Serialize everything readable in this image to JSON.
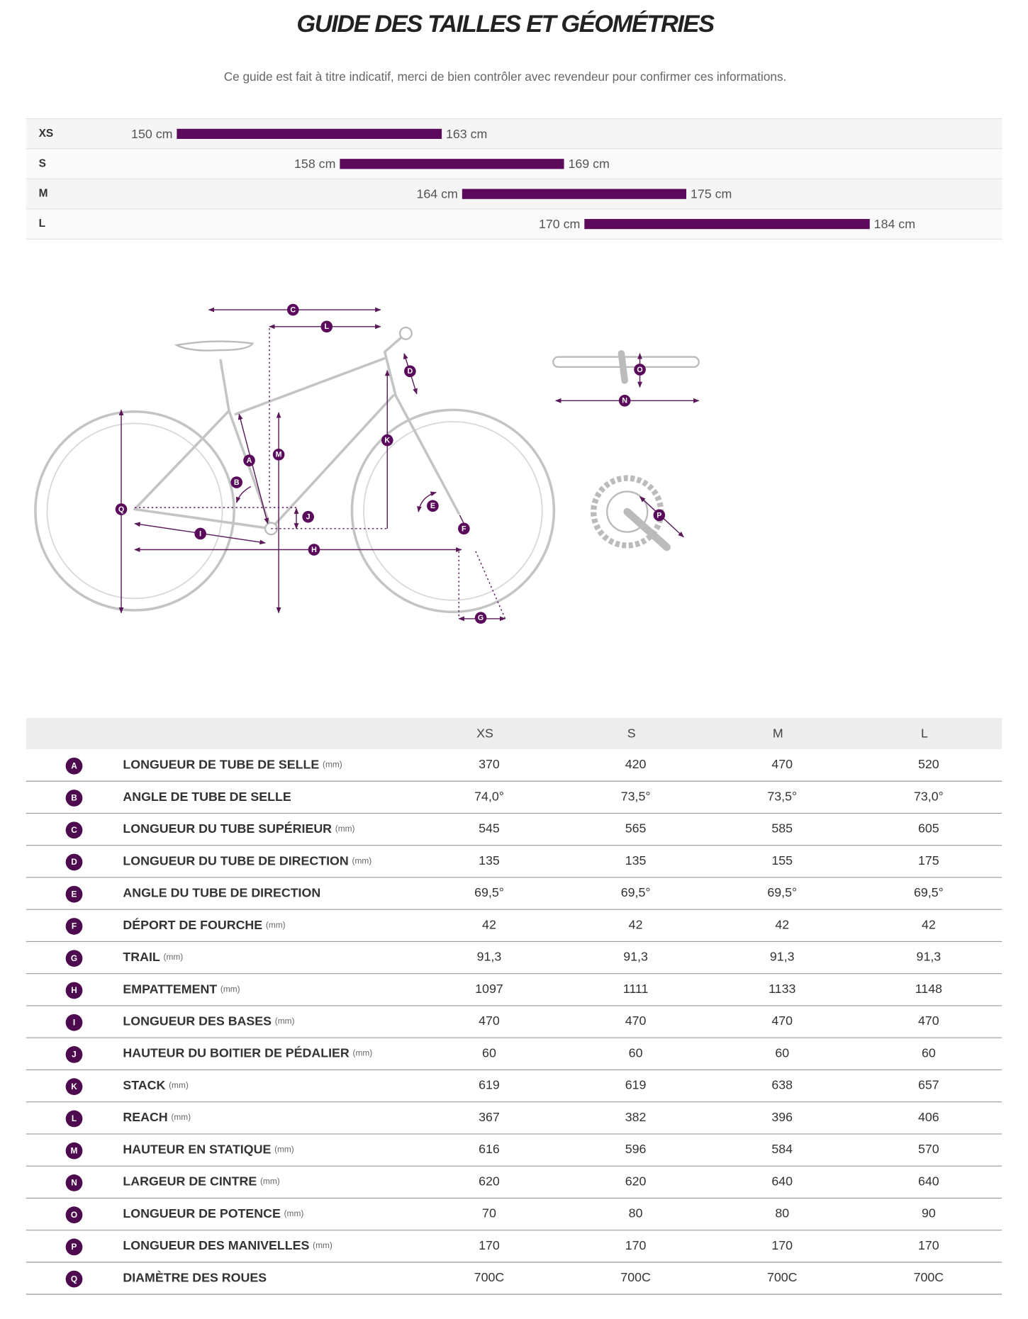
{
  "header": {
    "title": "GUIDE DES TAILLES ET GÉOMÉTRIES",
    "subtitle": "Ce guide est fait à titre indicatif, merci de bien contrôler avec revendeur pour confirmer ces informations."
  },
  "size_ranges": {
    "rows": [
      {
        "size": "XS",
        "min": 150,
        "max": 163,
        "min_label": "150 cm",
        "max_label": "163 cm"
      },
      {
        "size": "S",
        "min": 158,
        "max": 169,
        "min_label": "158 cm",
        "max_label": "169 cm"
      },
      {
        "size": "M",
        "min": 164,
        "max": 175,
        "min_label": "164 cm",
        "max_label": "175 cm"
      },
      {
        "size": "L",
        "min": 170,
        "max": 184,
        "min_label": "170 cm",
        "max_label": "184 cm"
      }
    ]
  },
  "geometry": {
    "columns": [
      "XS",
      "S",
      "M",
      "L"
    ],
    "rows": [
      {
        "letter": "A",
        "label": "LONGUEUR DE TUBE DE SELLE",
        "unit": "(mm)",
        "values": [
          "370",
          "420",
          "470",
          "520"
        ]
      },
      {
        "letter": "B",
        "label": "ANGLE DE TUBE DE SELLE",
        "values": [
          "74,0°",
          "73,5°",
          "73,5°",
          "73,0°"
        ]
      },
      {
        "letter": "C",
        "label": "LONGUEUR DU TUBE SUPÉRIEUR",
        "unit": "(mm)",
        "values": [
          "545",
          "565",
          "585",
          "605"
        ]
      },
      {
        "letter": "D",
        "label": "LONGUEUR DU TUBE DE DIRECTION",
        "unit": "(mm)",
        "values": [
          "135",
          "135",
          "155",
          "175"
        ]
      },
      {
        "letter": "E",
        "label": "ANGLE DU TUBE DE DIRECTION",
        "values": [
          "69,5°",
          "69,5°",
          "69,5°",
          "69,5°"
        ]
      },
      {
        "letter": "F",
        "label": "DÉPORT DE FOURCHE",
        "unit": "(mm)",
        "values": [
          "42",
          "42",
          "42",
          "42"
        ]
      },
      {
        "letter": "G",
        "label": "TRAIL",
        "unit": "(mm)",
        "values": [
          "91,3",
          "91,3",
          "91,3",
          "91,3"
        ]
      },
      {
        "letter": "H",
        "label": "EMPATTEMENT",
        "unit": "(mm)",
        "values": [
          "1097",
          "1111",
          "1133",
          "1148"
        ]
      },
      {
        "letter": "I",
        "label": "LONGUEUR DES BASES",
        "unit": "(mm)",
        "values": [
          "470",
          "470",
          "470",
          "470"
        ]
      },
      {
        "letter": "J",
        "label": "HAUTEUR DU BOITIER DE PÉDALIER",
        "unit": "(mm)",
        "values": [
          "60",
          "60",
          "60",
          "60"
        ]
      },
      {
        "letter": "K",
        "label": "STACK",
        "unit": "(mm)",
        "values": [
          "619",
          "619",
          "638",
          "657"
        ]
      },
      {
        "letter": "L",
        "label": "REACH",
        "unit": "(mm)",
        "values": [
          "367",
          "382",
          "396",
          "406"
        ]
      },
      {
        "letter": "M",
        "label": "HAUTEUR EN STATIQUE",
        "unit": "(mm)",
        "values": [
          "616",
          "596",
          "584",
          "570"
        ]
      },
      {
        "letter": "N",
        "label": "LARGEUR DE CINTRE",
        "unit": "(mm)",
        "values": [
          "620",
          "620",
          "640",
          "640"
        ]
      },
      {
        "letter": "O",
        "label": "LONGUEUR DE POTENCE",
        "unit": "(mm)",
        "values": [
          "70",
          "80",
          "80",
          "90"
        ]
      },
      {
        "letter": "P",
        "label": "LONGUEUR DES MANIVELLES",
        "unit": "(mm)",
        "values": [
          "170",
          "170",
          "170",
          "170"
        ]
      },
      {
        "letter": "Q",
        "label": "DIAMÈTRE DES ROUES",
        "values": [
          "700C",
          "700C",
          "700C",
          "700C"
        ]
      }
    ]
  }
}
